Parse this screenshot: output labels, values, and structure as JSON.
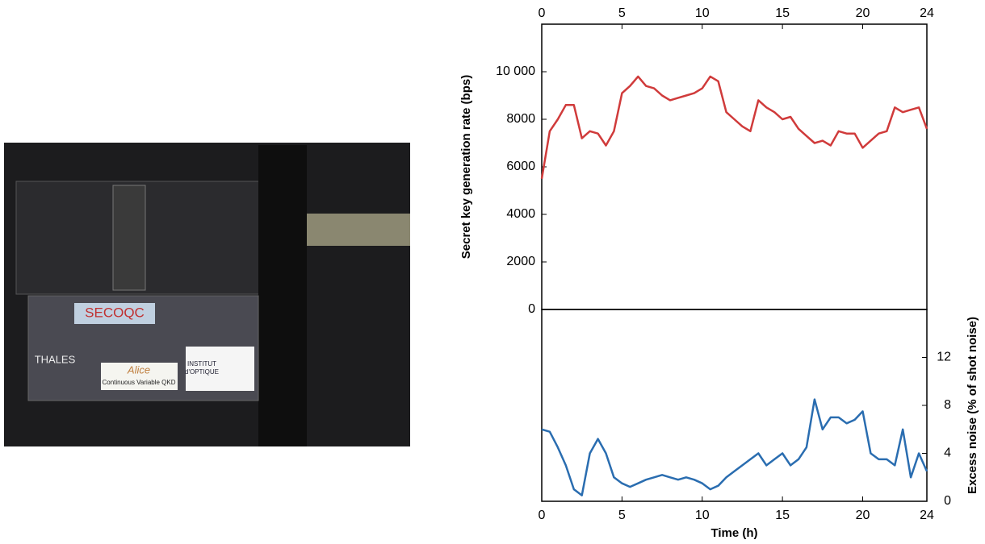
{
  "photo": {
    "labels": [
      "SECOQC",
      "THALES",
      "Alice",
      "Continuous Variable QKD",
      "INSTITUT",
      "d'OPTIQUE"
    ]
  },
  "chart_data": [
    {
      "type": "line",
      "ylabel": "Secret key generation rate (bps)",
      "xaxis_position": "top",
      "yaxis_position": "left",
      "xlim": [
        0,
        24
      ],
      "xticks": [
        0,
        5,
        10,
        15,
        20,
        24
      ],
      "ylim": [
        0,
        12000
      ],
      "yticks": [
        0,
        2000,
        4000,
        6000,
        8000,
        {
          "value": 10000,
          "label": "10 000"
        }
      ],
      "x": [
        0,
        0.5,
        1,
        1.5,
        2,
        2.5,
        3,
        3.5,
        4,
        4.5,
        5,
        5.5,
        6,
        6.5,
        7,
        7.5,
        8,
        8.5,
        9,
        9.5,
        10,
        10.5,
        11,
        11.5,
        12,
        12.5,
        13,
        13.5,
        14,
        14.5,
        15,
        15.5,
        16,
        16.5,
        17,
        17.5,
        18,
        18.5,
        19,
        19.5,
        20,
        20.5,
        21,
        21.5,
        22,
        22.5,
        23,
        23.5,
        24
      ],
      "series": [
        {
          "color": "#d03b3b",
          "values": [
            5500,
            7500,
            8000,
            8600,
            8600,
            7200,
            7500,
            7400,
            6900,
            7500,
            9100,
            9400,
            9800,
            9400,
            9300,
            9000,
            8800,
            8900,
            9000,
            9100,
            9300,
            9800,
            9600,
            8300,
            8000,
            7700,
            7500,
            8800,
            8500,
            8300,
            8000,
            8100,
            7600,
            7300,
            7000,
            7100,
            6900,
            7500,
            7400,
            7400,
            6800,
            7100,
            7400,
            7500,
            8500,
            8300,
            8400,
            8500,
            7600
          ]
        }
      ]
    },
    {
      "type": "line",
      "ylabel": "Excess noise (% of shot noise)",
      "xlabel": "Time (h)",
      "xaxis_position": "bottom",
      "yaxis_position": "right",
      "xlim": [
        0,
        24
      ],
      "xticks": [
        0,
        5,
        10,
        15,
        20,
        24
      ],
      "ylim": [
        0,
        16
      ],
      "yticks": [
        0,
        4,
        8,
        12
      ],
      "x": [
        0,
        0.5,
        1,
        1.5,
        2,
        2.5,
        3,
        3.5,
        4,
        4.5,
        5,
        5.5,
        6,
        6.5,
        7,
        7.5,
        8,
        8.5,
        9,
        9.5,
        10,
        10.5,
        11,
        11.5,
        12,
        12.5,
        13,
        13.5,
        14,
        14.5,
        15,
        15.5,
        16,
        16.5,
        17,
        17.5,
        18,
        18.5,
        19,
        19.5,
        20,
        20.5,
        21,
        21.5,
        22,
        22.5,
        23,
        23.5,
        24
      ],
      "series": [
        {
          "color": "#2a6db0",
          "values": [
            6,
            5.8,
            4.5,
            3,
            1,
            0.5,
            4,
            5.2,
            4,
            2,
            1.5,
            1.2,
            1.5,
            1.8,
            2,
            2.2,
            2,
            1.8,
            2,
            1.8,
            1.5,
            1,
            1.3,
            2,
            2.5,
            3,
            3.5,
            4,
            3,
            3.5,
            4,
            3,
            3.5,
            4.5,
            8.5,
            6,
            7,
            7,
            6.5,
            6.8,
            7.5,
            4,
            3.5,
            3.5,
            3,
            6,
            2,
            4,
            2.5
          ]
        }
      ]
    }
  ]
}
